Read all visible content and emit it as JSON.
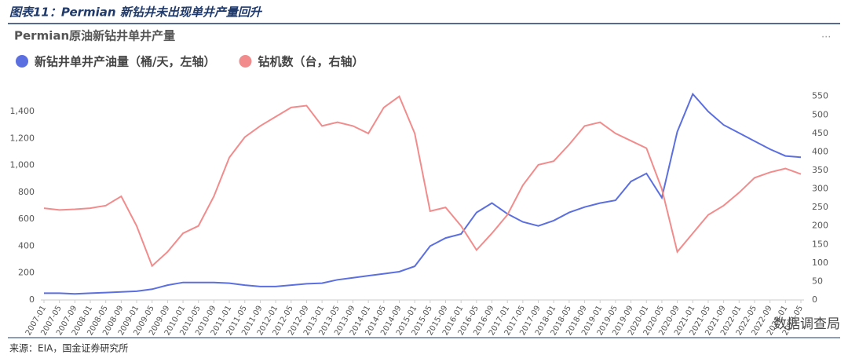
{
  "header": "图表11：Permian 新钻井未出现单井产量回升",
  "source": "来源：EIA，国金证券研究所",
  "badge": "数据调查局",
  "menu": "...",
  "chart_data": {
    "type": "line",
    "title": "Permian原油新钻井单井产量",
    "categories": [
      "2007-01",
      "2007-05",
      "2007-09",
      "2008-01",
      "2008-05",
      "2008-09",
      "2009-01",
      "2009-05",
      "2009-09",
      "2010-01",
      "2010-05",
      "2010-09",
      "2011-01",
      "2011-05",
      "2011-09",
      "2012-01",
      "2012-05",
      "2012-09",
      "2013-01",
      "2013-05",
      "2013-09",
      "2014-01",
      "2014-05",
      "2014-09",
      "2015-01",
      "2015-05",
      "2015-09",
      "2016-01",
      "2016-05",
      "2016-09",
      "2017-01",
      "2017-05",
      "2017-09",
      "2018-01",
      "2018-05",
      "2018-09",
      "2019-01",
      "2019-05",
      "2019-09",
      "2020-01",
      "2020-05",
      "2020-09",
      "2021-01",
      "2021-05",
      "2021-09",
      "2022-01",
      "2022-05",
      "2022-09",
      "2023-01",
      "2023-05"
    ],
    "series": [
      {
        "name": "新钻井单井产油量（桶/天，左轴）",
        "color": "#5b6fe0",
        "values": [
          50,
          50,
          45,
          50,
          55,
          60,
          65,
          80,
          110,
          130,
          130,
          130,
          125,
          110,
          100,
          100,
          110,
          120,
          125,
          150,
          165,
          180,
          195,
          210,
          250,
          400,
          460,
          490,
          650,
          720,
          640,
          580,
          550,
          590,
          650,
          690,
          720,
          740,
          880,
          940,
          760,
          1250,
          1530,
          1400,
          1300,
          1240,
          1180,
          1120,
          1070,
          1060
        ]
      },
      {
        "name": "钻机数（台，右轴）",
        "color": "#f28c8c",
        "axis": "y2",
        "values": [
          248,
          243,
          245,
          248,
          255,
          280,
          200,
          92,
          130,
          180,
          200,
          280,
          385,
          440,
          470,
          495,
          520,
          525,
          470,
          480,
          470,
          450,
          520,
          550,
          450,
          240,
          250,
          200,
          135,
          180,
          230,
          310,
          365,
          375,
          420,
          470,
          480,
          450,
          430,
          410,
          300,
          130,
          180,
          230,
          255,
          290,
          330,
          345,
          355,
          340
        ]
      }
    ],
    "ylim": [
      0,
      1540
    ],
    "yticks": [
      0,
      200,
      400,
      600,
      800,
      {
        "value": 1000,
        "label": "1,000"
      },
      {
        "value": 1200,
        "label": "1,200"
      },
      {
        "value": 1400,
        "label": "1,400"
      }
    ],
    "y2lim": [
      0,
      560
    ],
    "y2ticks": [
      0,
      50,
      100,
      150,
      200,
      250,
      300,
      350,
      400,
      450,
      500,
      550
    ],
    "legend": "top-left"
  }
}
